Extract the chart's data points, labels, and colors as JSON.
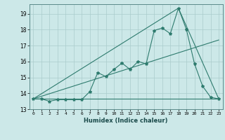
{
  "xlabel": "Humidex (Indice chaleur)",
  "bg_color": "#cce8e8",
  "grid_color": "#aacccc",
  "line_color": "#2e7b6e",
  "xlim": [
    -0.5,
    23.5
  ],
  "ylim": [
    13.0,
    19.6
  ],
  "yticks": [
    13,
    14,
    15,
    16,
    17,
    18,
    19
  ],
  "xticks": [
    0,
    1,
    2,
    3,
    4,
    5,
    6,
    7,
    8,
    9,
    10,
    11,
    12,
    13,
    14,
    15,
    16,
    17,
    18,
    19,
    20,
    21,
    22,
    23
  ],
  "series": {
    "line1_x": [
      0,
      1,
      2,
      3,
      4,
      5,
      6,
      7,
      8,
      9,
      10,
      11,
      12,
      13,
      14,
      15,
      16,
      17,
      18,
      19,
      20,
      21,
      22,
      23
    ],
    "line1_y": [
      13.65,
      13.65,
      13.5,
      13.6,
      13.6,
      13.6,
      13.6,
      14.1,
      15.3,
      15.05,
      15.5,
      15.9,
      15.5,
      16.0,
      15.85,
      17.95,
      18.1,
      17.75,
      19.35,
      18.0,
      15.85,
      14.45,
      13.75,
      13.65
    ],
    "line2_x": [
      0,
      23
    ],
    "line2_y": [
      13.65,
      13.65
    ],
    "line3_x": [
      0,
      23
    ],
    "line3_y": [
      13.65,
      17.35
    ],
    "line4_x": [
      0,
      18,
      23
    ],
    "line4_y": [
      13.65,
      19.35,
      13.65
    ]
  }
}
